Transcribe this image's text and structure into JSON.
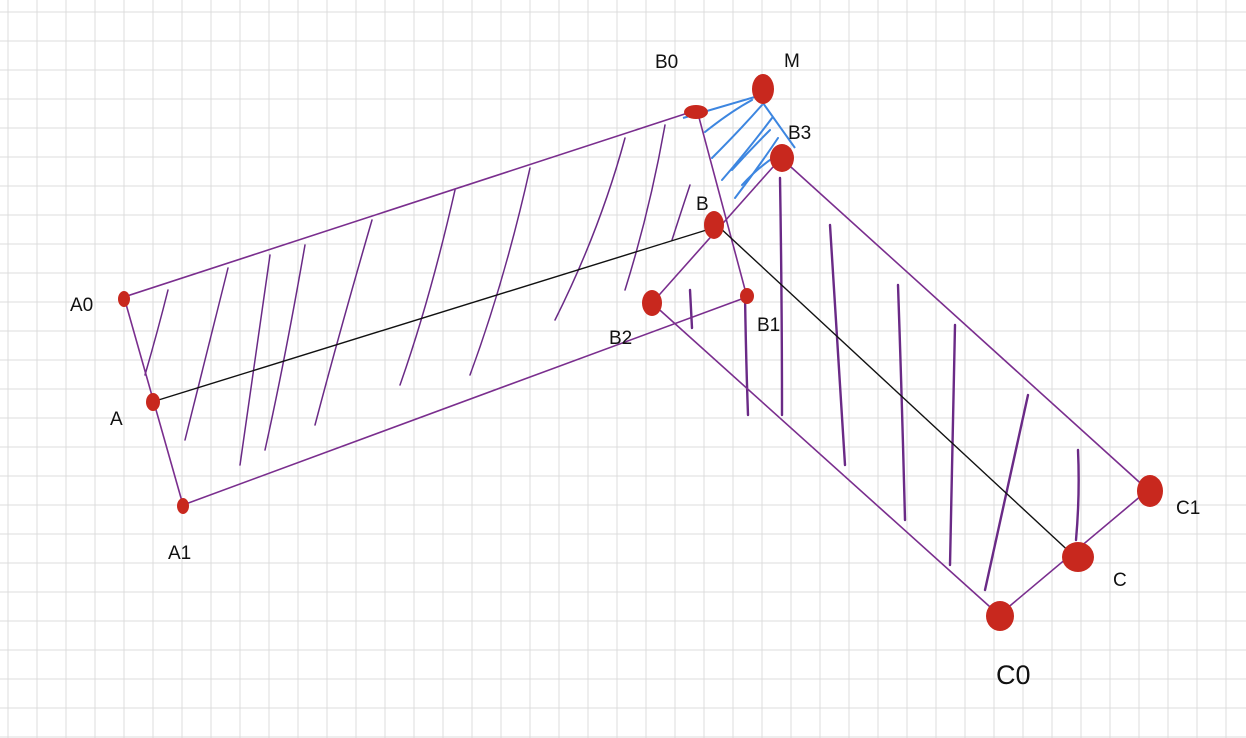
{
  "colors": {
    "background": "#ffffff",
    "grid": "#dcdcdc",
    "outline": "#7a2e8e",
    "hatch": "#6a2a86",
    "wedge": "#3d86e0",
    "centerline": "#111111",
    "point": "#c8281e"
  },
  "labels": {
    "A0": "A0",
    "A": "A",
    "A1": "A1",
    "B0": "B0",
    "M": "M",
    "B3": "B3",
    "B": "B",
    "B2": "B2",
    "B1": "B1",
    "C1": "C1",
    "C": "C",
    "C0": "C0"
  }
}
